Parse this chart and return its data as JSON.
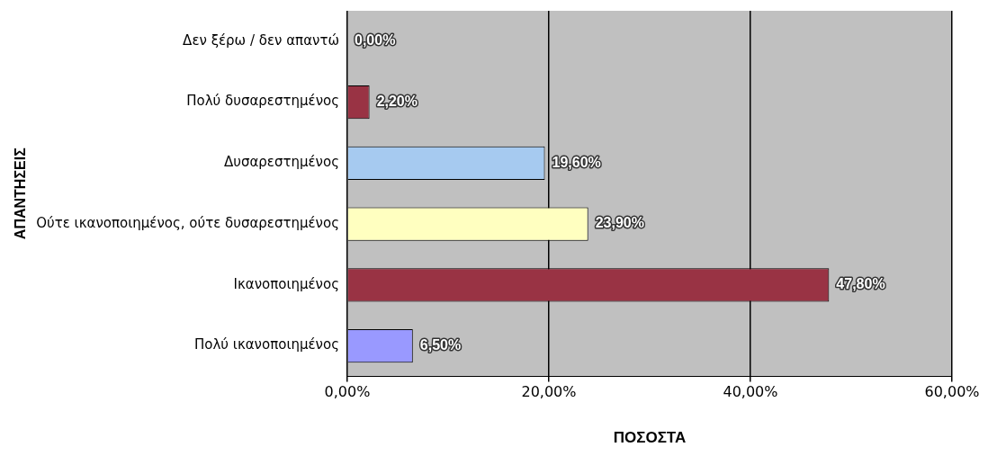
{
  "chart_data": {
    "type": "bar",
    "orientation": "horizontal",
    "xlabel": "ΠΟΣΟΣΤΑ",
    "ylabel": "ΑΠΑΝΤΗΣΕΙΣ",
    "categories": [
      "Δεν ξέρω / δεν απαντώ",
      "Πολύ δυσαρεστημένος",
      "Δυσαρεστημένος",
      "Ούτε ικανοποιημένος, ούτε δυσαρεστημένος",
      "Ικανοποιημένος",
      "Πολύ ικανοποιημένος"
    ],
    "values": [
      0,
      2.2,
      19.6,
      23.9,
      47.8,
      6.5
    ],
    "colors": [
      "#993344",
      "#993344",
      "#a6caf0",
      "#ffffc0",
      "#993344",
      "#9999ff"
    ],
    "value_labels": [
      "0,00%",
      "2,20%",
      "19,60%",
      "23,90%",
      "47,80%",
      "6,50%"
    ],
    "xlim": [
      0,
      60
    ],
    "xticks": [
      {
        "value": 0,
        "label": "0,00%"
      },
      {
        "value": 20,
        "label": "20,00%"
      },
      {
        "value": 40,
        "label": "40,00%"
      },
      {
        "value": 60,
        "label": "60,00%"
      }
    ],
    "grid": "x"
  }
}
